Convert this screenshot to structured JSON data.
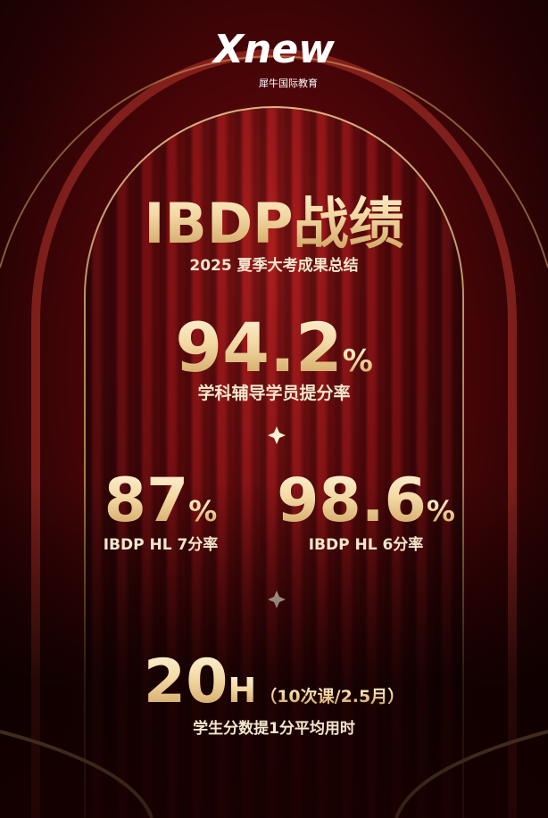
{
  "logo": {
    "brand": "Xnew",
    "tagline": "犀牛国际教育"
  },
  "header": {
    "title": "IBDP战绩",
    "subtitle": "2025 夏季大考成果总结"
  },
  "stats": [
    {
      "value": "94.2",
      "unit": "%",
      "label": "学科辅导学员提分率"
    },
    {
      "value": "87",
      "unit": "%",
      "label": "IBDP HL 7分率"
    },
    {
      "value": "98.6",
      "unit": "%",
      "label": "IBDP HL 6分率"
    },
    {
      "value": "20",
      "unit": "H",
      "note": "（10次课/2.5月）",
      "label": "学生分数提1分平均用时"
    }
  ]
}
